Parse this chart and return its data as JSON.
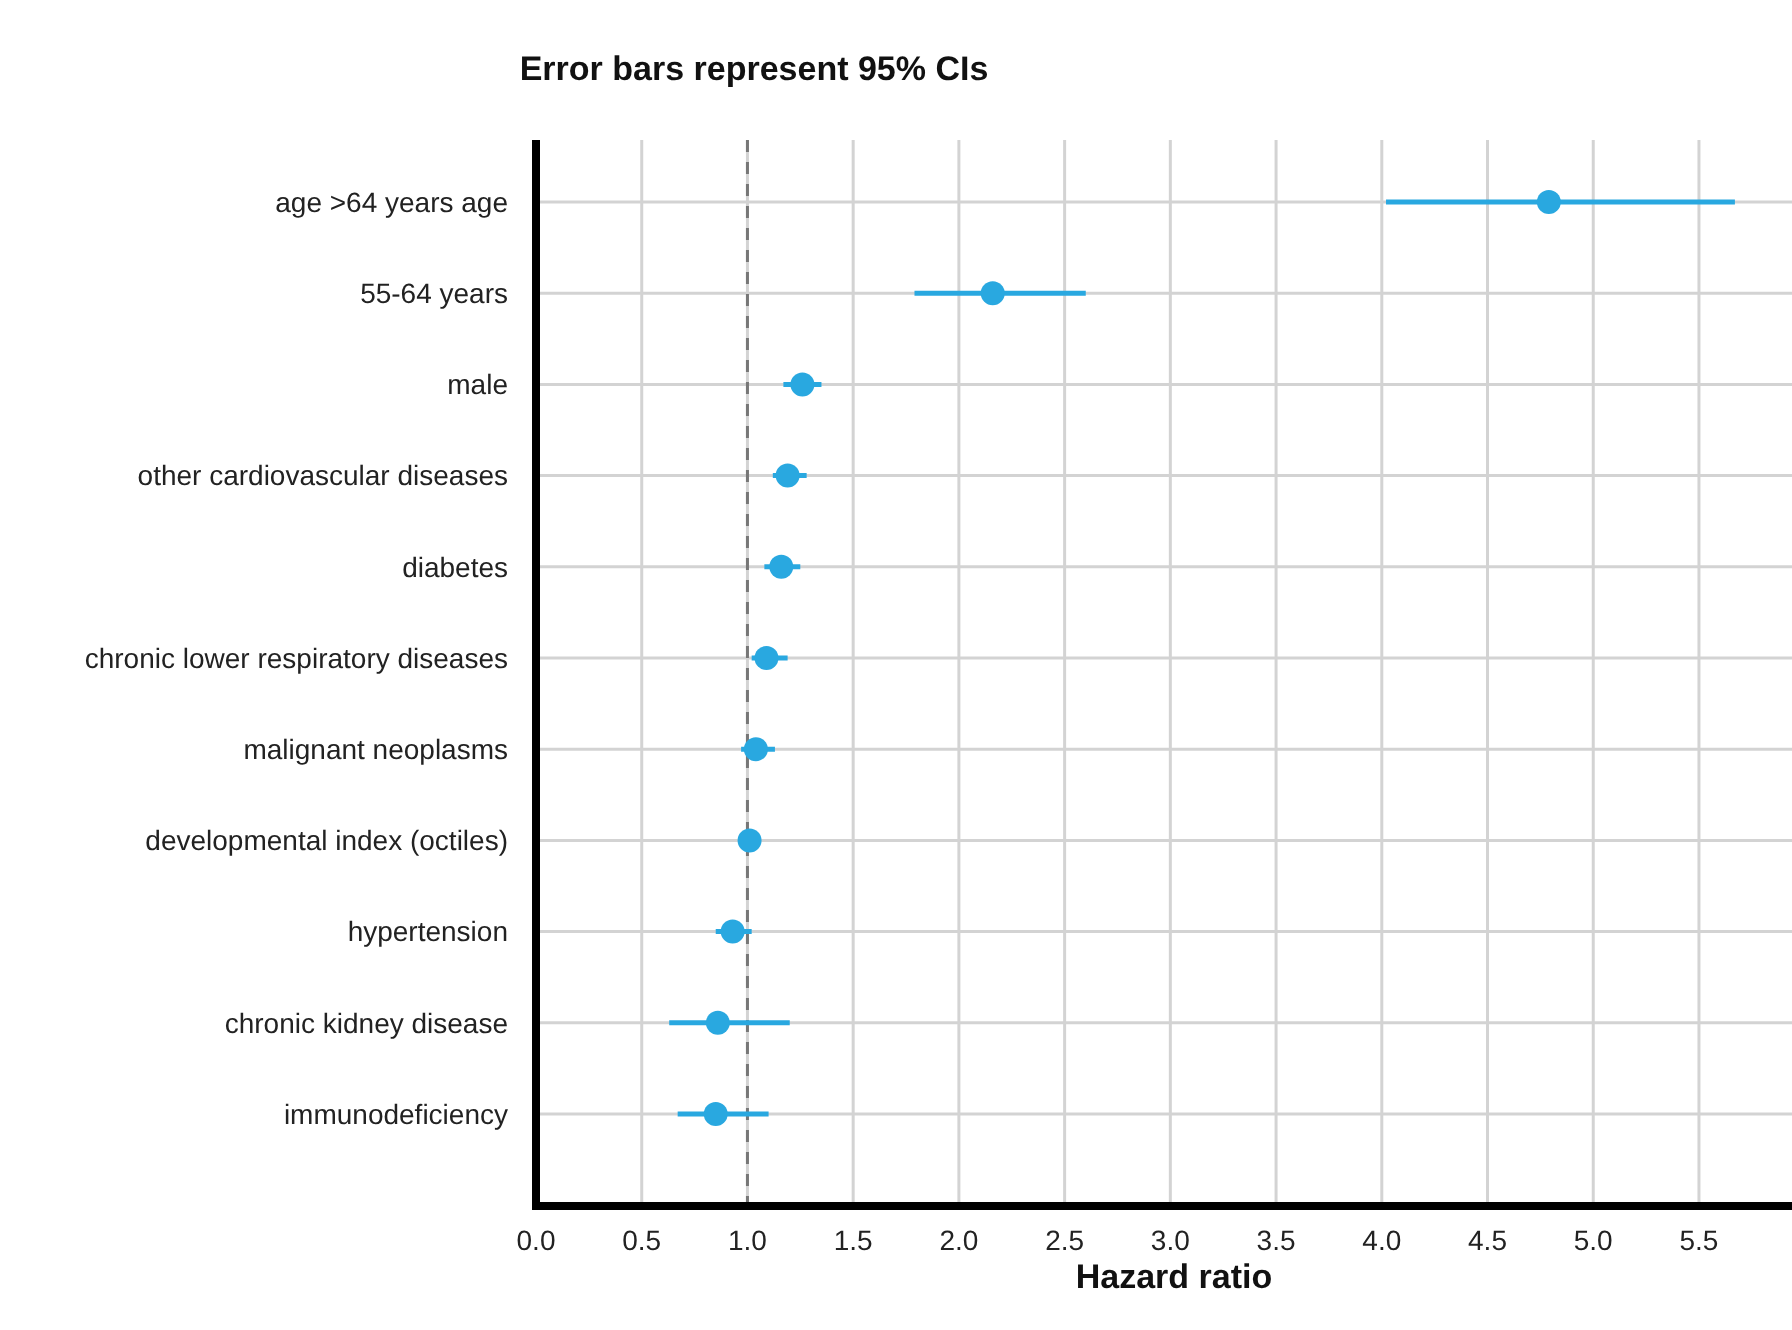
{
  "chart_data": {
    "type": "scatter",
    "orientation": "horizontal",
    "title": "Error bars represent 95% CIs",
    "xlabel": "Hazard ratio",
    "categories": [
      "age >64 years age",
      "55-64 years",
      "male",
      "other cardiovascular diseases",
      "diabetes",
      "chronic lower respiratory diseases",
      "malignant neoplasms",
      "developmental index (octiles)",
      "hypertension",
      "chronic kidney disease",
      "immunodeficiency"
    ],
    "values": [
      4.79,
      2.16,
      1.26,
      1.19,
      1.16,
      1.09,
      1.04,
      1.01,
      0.93,
      0.86,
      0.85
    ],
    "errors": [
      [
        4.02,
        5.67
      ],
      [
        1.79,
        2.6
      ],
      [
        1.17,
        1.35
      ],
      [
        1.12,
        1.28
      ],
      [
        1.08,
        1.25
      ],
      [
        1.02,
        1.19
      ],
      [
        0.97,
        1.13
      ],
      null,
      [
        0.85,
        1.02
      ],
      [
        0.63,
        1.2
      ],
      [
        0.67,
        1.1
      ]
    ],
    "color": "#29a8e0",
    "marker": "circle",
    "xlim": [
      0,
      5.94
    ],
    "xticks": [
      {
        "value": 0,
        "label": "0.0"
      },
      0.5,
      {
        "value": 1,
        "label": "1.0"
      },
      1.5,
      {
        "value": 2,
        "label": "2.0"
      },
      2.5,
      {
        "value": 3,
        "label": "3.0"
      },
      3.5,
      {
        "value": 4,
        "label": "4.0"
      },
      4.5,
      {
        "value": 5,
        "label": "5.0"
      },
      5.5
    ],
    "grid": true,
    "ref_lines": [
      {
        "axis": "x",
        "value": 1,
        "color": "#777777",
        "line_style": "dashed"
      }
    ]
  }
}
